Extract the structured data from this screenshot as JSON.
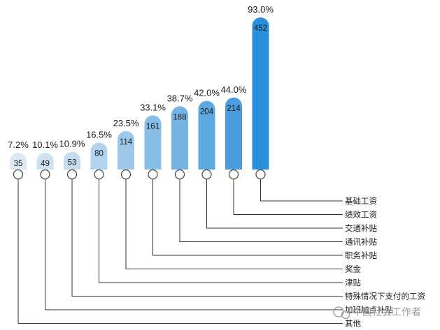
{
  "chart_data": {
    "type": "bar",
    "categories": [
      "其他",
      "加班加点补贴",
      "特殊情况下支付的工资",
      "津贴",
      "奖金",
      "职务补贴",
      "通讯补贴",
      "交通补贴",
      "绩效工资",
      "基础工资"
    ],
    "values": [
      35,
      49,
      53,
      80,
      114,
      161,
      188,
      204,
      214,
      452
    ],
    "percent_labels": [
      "7.2%",
      "10.1%",
      "10.9%",
      "16.5%",
      "23.5%",
      "33.1%",
      "38.7%",
      "42.0%",
      "44.0%",
      "93.0%"
    ],
    "value_labels": [
      "35",
      "49",
      "53",
      "80",
      "114",
      "161",
      "188",
      "204",
      "214",
      "452"
    ],
    "title": "",
    "xlabel": "",
    "ylabel": "",
    "grid": false,
    "legend": "none",
    "colors": [
      "#dbe9f6",
      "#cde2f3",
      "#c4dcf1",
      "#b2d3ee",
      "#9dc8ea",
      "#88bde6",
      "#74b3e3",
      "#5ea8e0",
      "#4a9dde",
      "#2a90db"
    ]
  },
  "watermark": "中国社会工作者",
  "watermark_icon": "chat-bubble-icon"
}
